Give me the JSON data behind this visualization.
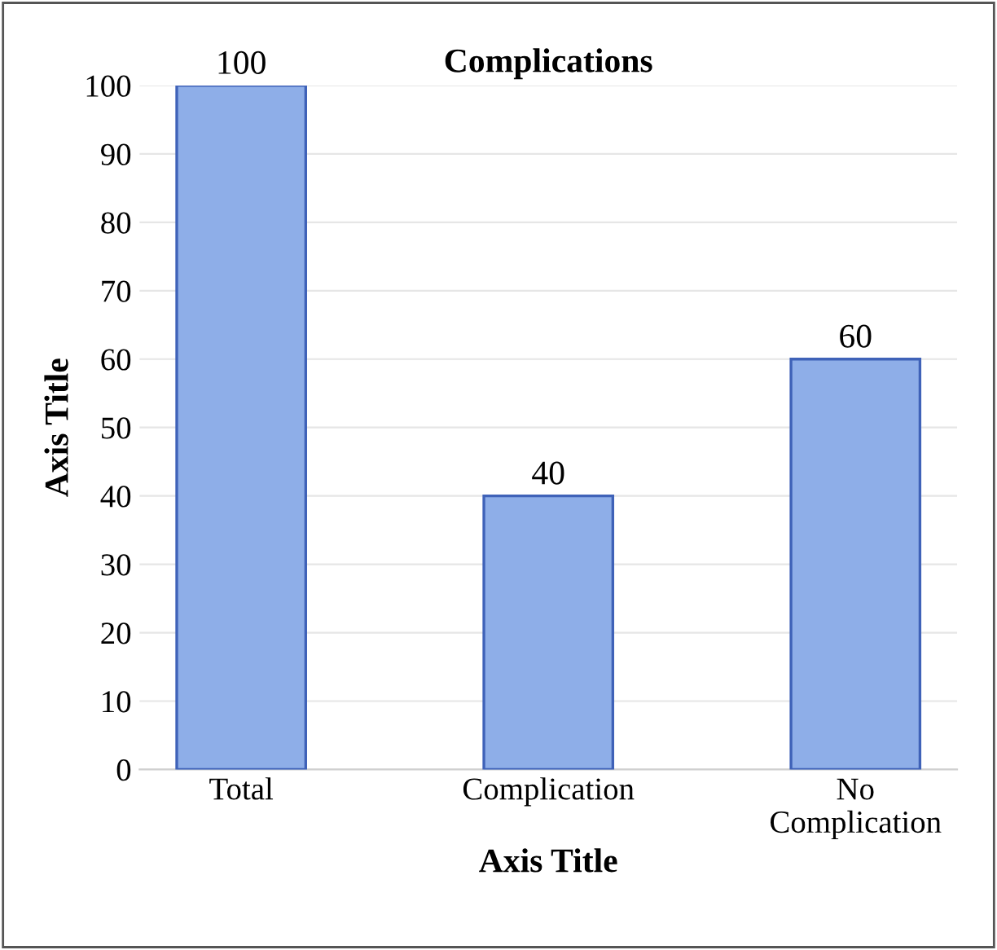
{
  "chart_data": {
    "type": "bar",
    "title": "Complications",
    "xlabel": "Axis Title",
    "ylabel": "Axis Title",
    "categories": [
      "Total",
      "Complication",
      "No\nComplication"
    ],
    "values": [
      100,
      40,
      60
    ],
    "color": "#8eaee8",
    "ylim": [
      0,
      100
    ],
    "yticks": [
      0,
      10,
      20,
      30,
      40,
      50,
      60,
      70,
      80,
      90,
      100
    ],
    "grid": "y",
    "data_labels": true
  }
}
